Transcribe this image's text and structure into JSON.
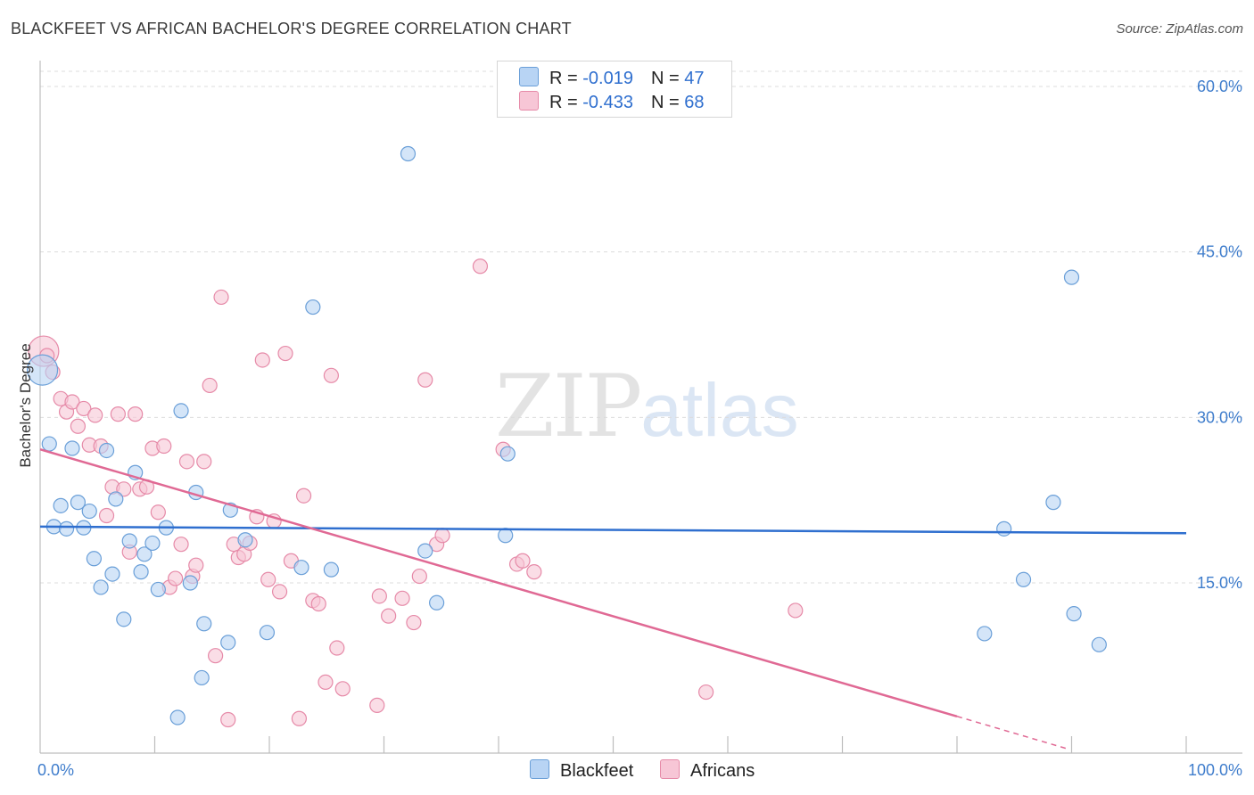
{
  "title": "BLACKFEET VS AFRICAN BACHELOR'S DEGREE CORRELATION CHART",
  "source": "Source: ZipAtlas.com",
  "watermark": {
    "part1": "ZIP",
    "part2": "atlas"
  },
  "colors": {
    "blackfeet_fill": "#b8d4f4",
    "blackfeet_stroke": "#6a9fd8",
    "blackfeet_line": "#2f6fcf",
    "africans_fill": "#f7c6d6",
    "africans_stroke": "#e68aa8",
    "africans_line": "#e06994",
    "grid": "#dcdcdc",
    "tick_text": "#3f7dcc"
  },
  "legend": {
    "rows": [
      {
        "r_label": "R = ",
        "r_value": "-0.019",
        "n_label": "N = ",
        "n_value": "47"
      },
      {
        "r_label": "R = ",
        "r_value": "-0.433",
        "n_label": "N = ",
        "n_value": "68"
      }
    ]
  },
  "bottom_legend": {
    "series1": "Blackfeet",
    "series2": "Africans"
  },
  "chart_data": {
    "type": "scatter",
    "title": "BLACKFEET VS AFRICAN BACHELOR'S DEGREE CORRELATION CHART",
    "xlabel": "",
    "ylabel": "Bachelor's Degree",
    "xlim": [
      0,
      100
    ],
    "ylim": [
      0,
      60
    ],
    "x_tick_labels": [
      "0.0%",
      "100.0%"
    ],
    "y_ticks": [
      15,
      30,
      45,
      60
    ],
    "y_tick_labels": [
      "15.0%",
      "30.0%",
      "45.0%",
      "60.0%"
    ],
    "grid": "horizontal dashed",
    "legend_position": "top-center",
    "series": [
      {
        "name": "Blackfeet",
        "R": -0.019,
        "N": 47,
        "trend": {
          "x0": 0,
          "y0": 20.1,
          "x1": 100,
          "y1": 19.5
        },
        "points": [
          [
            0.2,
            34.3
          ],
          [
            0.8,
            27.6
          ],
          [
            1.2,
            20.1
          ],
          [
            1.8,
            22.0
          ],
          [
            2.3,
            19.9
          ],
          [
            2.8,
            27.2
          ],
          [
            3.3,
            22.3
          ],
          [
            3.8,
            20.0
          ],
          [
            4.3,
            21.5
          ],
          [
            4.7,
            17.2
          ],
          [
            5.3,
            14.6
          ],
          [
            5.8,
            27.0
          ],
          [
            6.3,
            15.8
          ],
          [
            6.6,
            22.6
          ],
          [
            7.3,
            11.7
          ],
          [
            7.8,
            18.8
          ],
          [
            8.3,
            25.0
          ],
          [
            8.8,
            16.0
          ],
          [
            9.1,
            17.6
          ],
          [
            9.8,
            18.6
          ],
          [
            10.3,
            14.4
          ],
          [
            11.0,
            20.0
          ],
          [
            12.0,
            2.8
          ],
          [
            12.3,
            30.6
          ],
          [
            13.1,
            15.0
          ],
          [
            13.6,
            23.2
          ],
          [
            14.3,
            11.3
          ],
          [
            14.1,
            6.4
          ],
          [
            16.4,
            9.6
          ],
          [
            16.6,
            21.6
          ],
          [
            17.9,
            18.9
          ],
          [
            19.8,
            10.5
          ],
          [
            22.8,
            16.4
          ],
          [
            23.8,
            40.0
          ],
          [
            25.4,
            16.2
          ],
          [
            32.1,
            53.9
          ],
          [
            33.6,
            17.9
          ],
          [
            34.6,
            13.2
          ],
          [
            40.8,
            26.7
          ],
          [
            40.6,
            19.3
          ],
          [
            82.4,
            10.4
          ],
          [
            84.1,
            19.9
          ],
          [
            85.8,
            15.3
          ],
          [
            88.4,
            22.3
          ],
          [
            90.0,
            42.7
          ],
          [
            90.2,
            12.2
          ],
          [
            92.4,
            9.4
          ]
        ]
      },
      {
        "name": "Africans",
        "R": -0.433,
        "N": 68,
        "trend": {
          "x0": 0,
          "y0": 27.1,
          "x1": 80.0,
          "y1": 2.9
        },
        "trend_dashed_to": {
          "x1": 89.5,
          "y1": 0.0
        },
        "points": [
          [
            0.3,
            36.0
          ],
          [
            0.6,
            35.6
          ],
          [
            1.1,
            34.1
          ],
          [
            1.8,
            31.7
          ],
          [
            2.3,
            30.5
          ],
          [
            2.8,
            31.4
          ],
          [
            3.3,
            29.2
          ],
          [
            3.8,
            30.8
          ],
          [
            4.3,
            27.5
          ],
          [
            4.8,
            30.2
          ],
          [
            5.3,
            27.4
          ],
          [
            5.8,
            21.1
          ],
          [
            6.3,
            23.7
          ],
          [
            6.8,
            30.3
          ],
          [
            7.3,
            23.5
          ],
          [
            7.8,
            17.8
          ],
          [
            8.3,
            30.3
          ],
          [
            8.7,
            23.5
          ],
          [
            9.3,
            23.7
          ],
          [
            9.8,
            27.2
          ],
          [
            10.3,
            21.4
          ],
          [
            10.8,
            27.4
          ],
          [
            11.3,
            14.6
          ],
          [
            11.8,
            15.4
          ],
          [
            12.3,
            18.5
          ],
          [
            12.8,
            26.0
          ],
          [
            13.3,
            15.6
          ],
          [
            13.6,
            16.6
          ],
          [
            14.3,
            26.0
          ],
          [
            14.8,
            32.9
          ],
          [
            15.3,
            8.4
          ],
          [
            15.8,
            40.9
          ],
          [
            16.4,
            2.6
          ],
          [
            16.9,
            18.5
          ],
          [
            17.3,
            17.3
          ],
          [
            17.8,
            17.6
          ],
          [
            18.3,
            18.6
          ],
          [
            18.9,
            21.0
          ],
          [
            19.4,
            35.2
          ],
          [
            19.9,
            15.3
          ],
          [
            20.4,
            20.6
          ],
          [
            20.9,
            14.2
          ],
          [
            21.4,
            35.8
          ],
          [
            21.9,
            17.0
          ],
          [
            22.6,
            2.7
          ],
          [
            23.0,
            22.9
          ],
          [
            23.8,
            13.4
          ],
          [
            24.3,
            13.1
          ],
          [
            24.9,
            6.0
          ],
          [
            25.4,
            33.8
          ],
          [
            25.9,
            9.1
          ],
          [
            26.4,
            5.4
          ],
          [
            29.4,
            3.9
          ],
          [
            29.6,
            13.8
          ],
          [
            30.4,
            12.0
          ],
          [
            31.6,
            13.6
          ],
          [
            32.6,
            11.4
          ],
          [
            33.1,
            15.6
          ],
          [
            33.6,
            33.4
          ],
          [
            34.6,
            18.5
          ],
          [
            35.1,
            19.3
          ],
          [
            38.4,
            43.7
          ],
          [
            40.4,
            27.1
          ],
          [
            41.6,
            16.7
          ],
          [
            42.1,
            17.0
          ],
          [
            43.1,
            16.0
          ],
          [
            58.1,
            5.1
          ],
          [
            65.9,
            12.5
          ]
        ]
      }
    ]
  }
}
